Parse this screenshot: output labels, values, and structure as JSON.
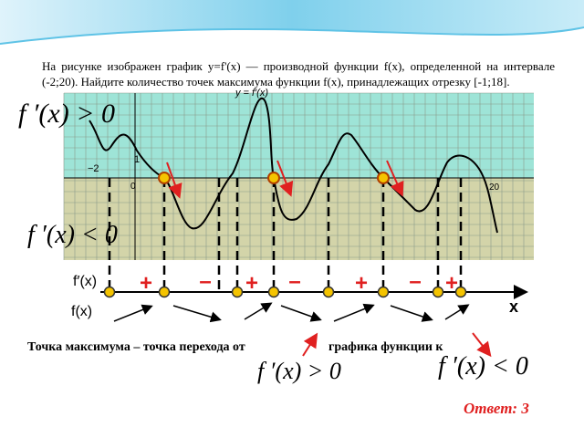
{
  "problem": "На рисунке изображен график y=f'(x) — производной функции f(x), определенной на интервале (-2;20). Найдите количество точек максимума функции f(x), принадлежащих отрезку [-1;18].",
  "graph_labels": {
    "curve": "y = f′(x)",
    "minus_two": "−2",
    "one": "1",
    "zero": "0",
    "twenty": "20"
  },
  "formulas": {
    "positive": "f ′(x) > 0",
    "negative": "f ′(x) < 0"
  },
  "number_line": {
    "signs": [
      "+",
      "–",
      "+",
      "–",
      "+",
      "–",
      "+"
    ],
    "fprime_label": "f′(x)",
    "f_label": "f(x)",
    "axis_label": "x"
  },
  "conclusion": {
    "text_start": "Точка максимума – точка перехода от",
    "text_end": "графика функции к",
    "formula_positive": "f ′(x) > 0",
    "formula_negative": "f ′(x) < 0"
  },
  "answer": "Ответ: 3"
}
